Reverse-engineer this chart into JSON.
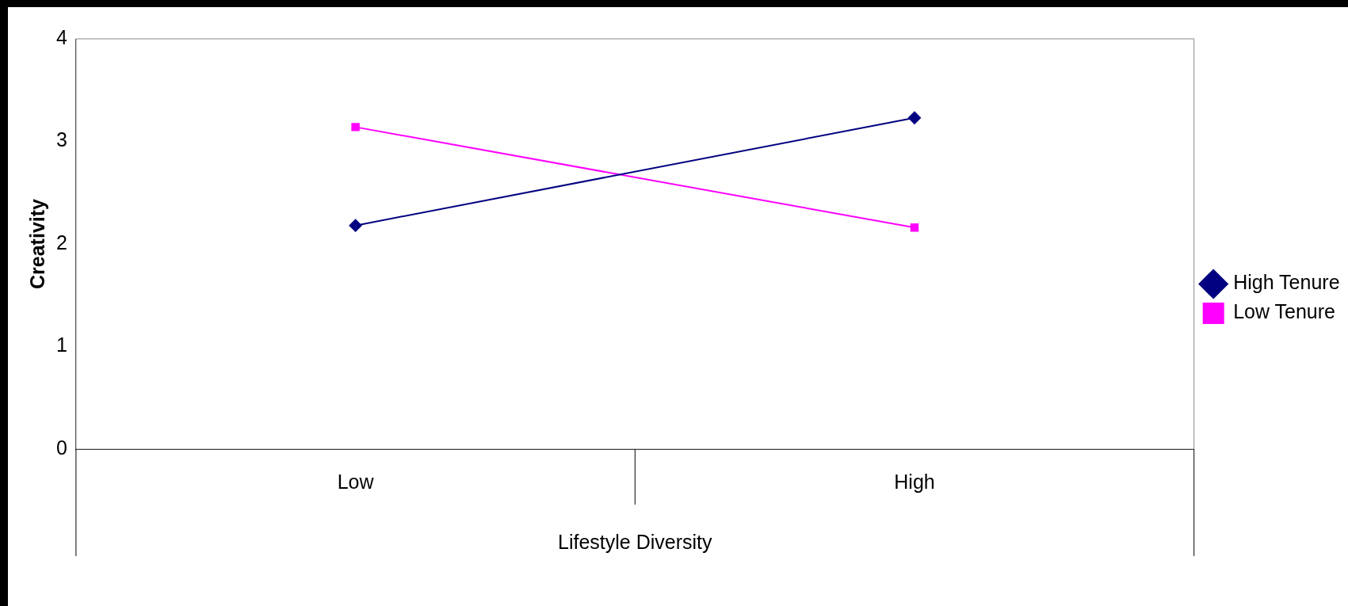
{
  "chart_data": {
    "type": "line",
    "xlabel": "Lifestyle Diversity",
    "ylabel": "Creativity",
    "categories": [
      "Low",
      "High"
    ],
    "series": [
      {
        "name": "High Tenure",
        "color": "#000080",
        "values": [
          2.18,
          3.23
        ],
        "marker": "diamond"
      },
      {
        "name": "Low Tenure",
        "color": "#ff00ff",
        "values": [
          3.14,
          2.16
        ],
        "marker": "square"
      }
    ],
    "ylim": [
      0,
      4
    ],
    "yticks": [
      0,
      1,
      2,
      3,
      4
    ],
    "grid": false,
    "legend": "right",
    "line_style": "solid"
  }
}
